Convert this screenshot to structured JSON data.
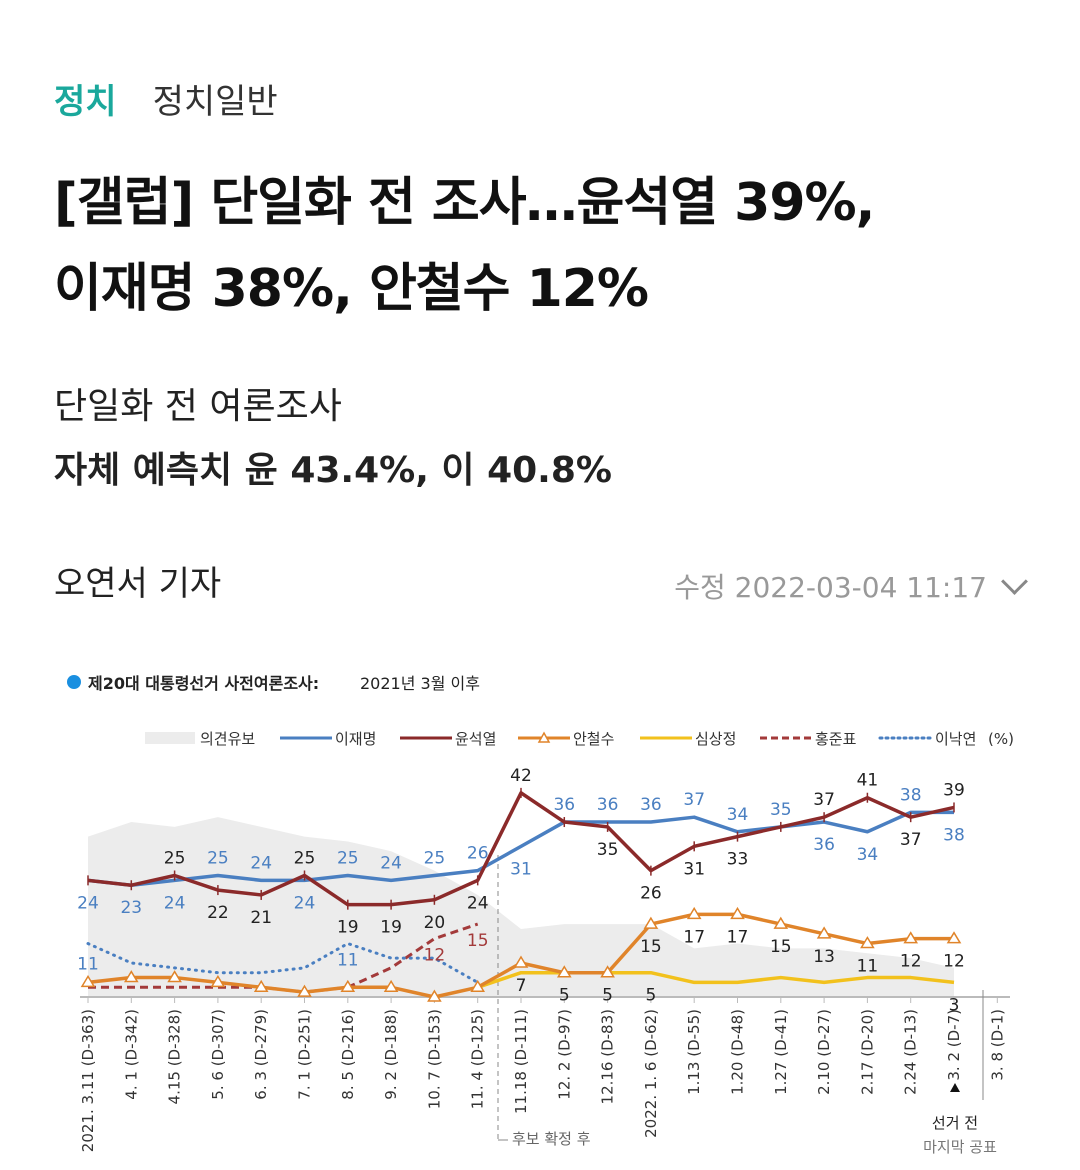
{
  "category": {
    "main": "정치",
    "sub": "정치일반"
  },
  "title": [
    "[갤럽] 단일화 전 조사…윤석열 39%,",
    "이재명 38%, 안철수 12%"
  ],
  "subheadings": [
    "단일화 전 여론조사",
    "자체 예측치 윤 43.4%, 이 40.8%"
  ],
  "reporter": "오연서 기자",
  "modified": "수정 2022-03-04 11:17",
  "chart_data": {
    "type": "line",
    "title": "제20대 대통령선거 사전여론조사:",
    "subtitle": "2021년 3월 이후",
    "unit": "(%)",
    "categories": [
      "2021. 3.11 (D-363)",
      "4. 1 (D-342)",
      "4.15 (D-328)",
      "5. 6 (D-307)",
      "6. 3 (D-279)",
      "7. 1 (D-251)",
      "8. 5 (D-216)",
      "9. 2 (D-188)",
      "10. 7 (D-153)",
      "11. 4 (D-125)",
      "11.18 (D-111)",
      "12. 2 (D-97)",
      "12.16 (D-83)",
      "2022. 1. 6 (D-62)",
      "1.13 (D-55)",
      "1.20 (D-48)",
      "1.27 (D-41)",
      "2.10 (D-27)",
      "2.17 (D-20)",
      "2.24 (D-13)",
      "3. 2 (D-7)",
      "3. 8 (D-1)"
    ],
    "ylim": [
      0,
      45
    ],
    "undecided": {
      "name": "의견유보",
      "color": "#ececec",
      "values": [
        33,
        36,
        35,
        37,
        35,
        33,
        32,
        30,
        26,
        21,
        14,
        15,
        15,
        15,
        10,
        11,
        10,
        10,
        9,
        8,
        6,
        null
      ]
    },
    "series": [
      {
        "name": "이재명",
        "color": "#4a7fc1",
        "style": "solid",
        "marker": "none",
        "values": [
          24,
          23,
          24,
          25,
          24,
          24,
          25,
          24,
          25,
          26,
          31,
          36,
          36,
          36,
          37,
          34,
          35,
          36,
          34,
          38,
          38,
          null
        ],
        "labels": [
          24,
          23,
          24,
          25,
          24,
          24,
          25,
          24,
          25,
          26,
          31,
          36,
          36,
          36,
          37,
          34,
          35,
          36,
          34,
          38,
          38,
          null
        ]
      },
      {
        "name": "윤석열",
        "color": "#8b2a2a",
        "style": "solid",
        "marker": "tick",
        "values": [
          24,
          23,
          25,
          22,
          21,
          25,
          19,
          19,
          20,
          24,
          42,
          36,
          35,
          26,
          31,
          33,
          35,
          37,
          41,
          37,
          39,
          null
        ],
        "labels": [
          null,
          null,
          25,
          22,
          21,
          25,
          19,
          19,
          20,
          24,
          42,
          null,
          35,
          26,
          31,
          33,
          null,
          37,
          41,
          37,
          39,
          null
        ]
      },
      {
        "name": "안철수",
        "color": "#e0842a",
        "style": "solid",
        "marker": "triangle",
        "values": [
          3,
          4,
          4,
          3,
          2,
          1,
          2,
          2,
          0,
          2,
          7,
          5,
          5,
          15,
          17,
          17,
          15,
          13,
          11,
          12,
          12,
          null
        ],
        "labels": [
          null,
          null,
          null,
          null,
          null,
          null,
          null,
          null,
          null,
          null,
          7,
          null,
          null,
          15,
          17,
          17,
          15,
          13,
          11,
          12,
          12,
          null
        ]
      },
      {
        "name": "심상정",
        "color": "#f2c11c",
        "style": "solid",
        "marker": "none",
        "values": [
          null,
          null,
          null,
          null,
          null,
          null,
          null,
          null,
          null,
          2,
          5,
          5,
          5,
          5,
          3,
          3,
          4,
          3,
          4,
          4,
          3,
          null
        ],
        "labels": [
          null,
          null,
          null,
          null,
          null,
          null,
          null,
          null,
          null,
          null,
          null,
          5,
          5,
          5,
          null,
          null,
          null,
          null,
          null,
          null,
          3,
          null
        ]
      },
      {
        "name": "홍준표",
        "color": "#a33a3a",
        "style": "dashed",
        "marker": "none",
        "values": [
          2,
          2,
          2,
          2,
          2,
          1,
          2,
          6,
          12,
          15,
          null,
          null,
          null,
          null,
          null,
          null,
          null,
          null,
          null,
          null,
          null,
          null
        ],
        "labels": [
          null,
          null,
          null,
          null,
          null,
          null,
          null,
          null,
          12,
          15,
          null,
          null,
          null,
          null,
          null,
          null,
          null,
          null,
          null,
          null,
          null,
          null
        ]
      },
      {
        "name": "이낙연",
        "color": "#4a7fc1",
        "style": "dotted",
        "marker": "none",
        "values": [
          11,
          7,
          6,
          5,
          5,
          6,
          11,
          8,
          8,
          3,
          null,
          null,
          null,
          null,
          null,
          null,
          null,
          null,
          null,
          null,
          null,
          null
        ],
        "labels": [
          11,
          null,
          null,
          null,
          null,
          null,
          11,
          null,
          null,
          null,
          null,
          null,
          null,
          null,
          null,
          null,
          null,
          null,
          null,
          null,
          null,
          null
        ]
      }
    ],
    "annotations": {
      "after_nomination": "후보 확정 후",
      "pre_election": "선거 전",
      "last_release": "마지막 공표"
    }
  }
}
